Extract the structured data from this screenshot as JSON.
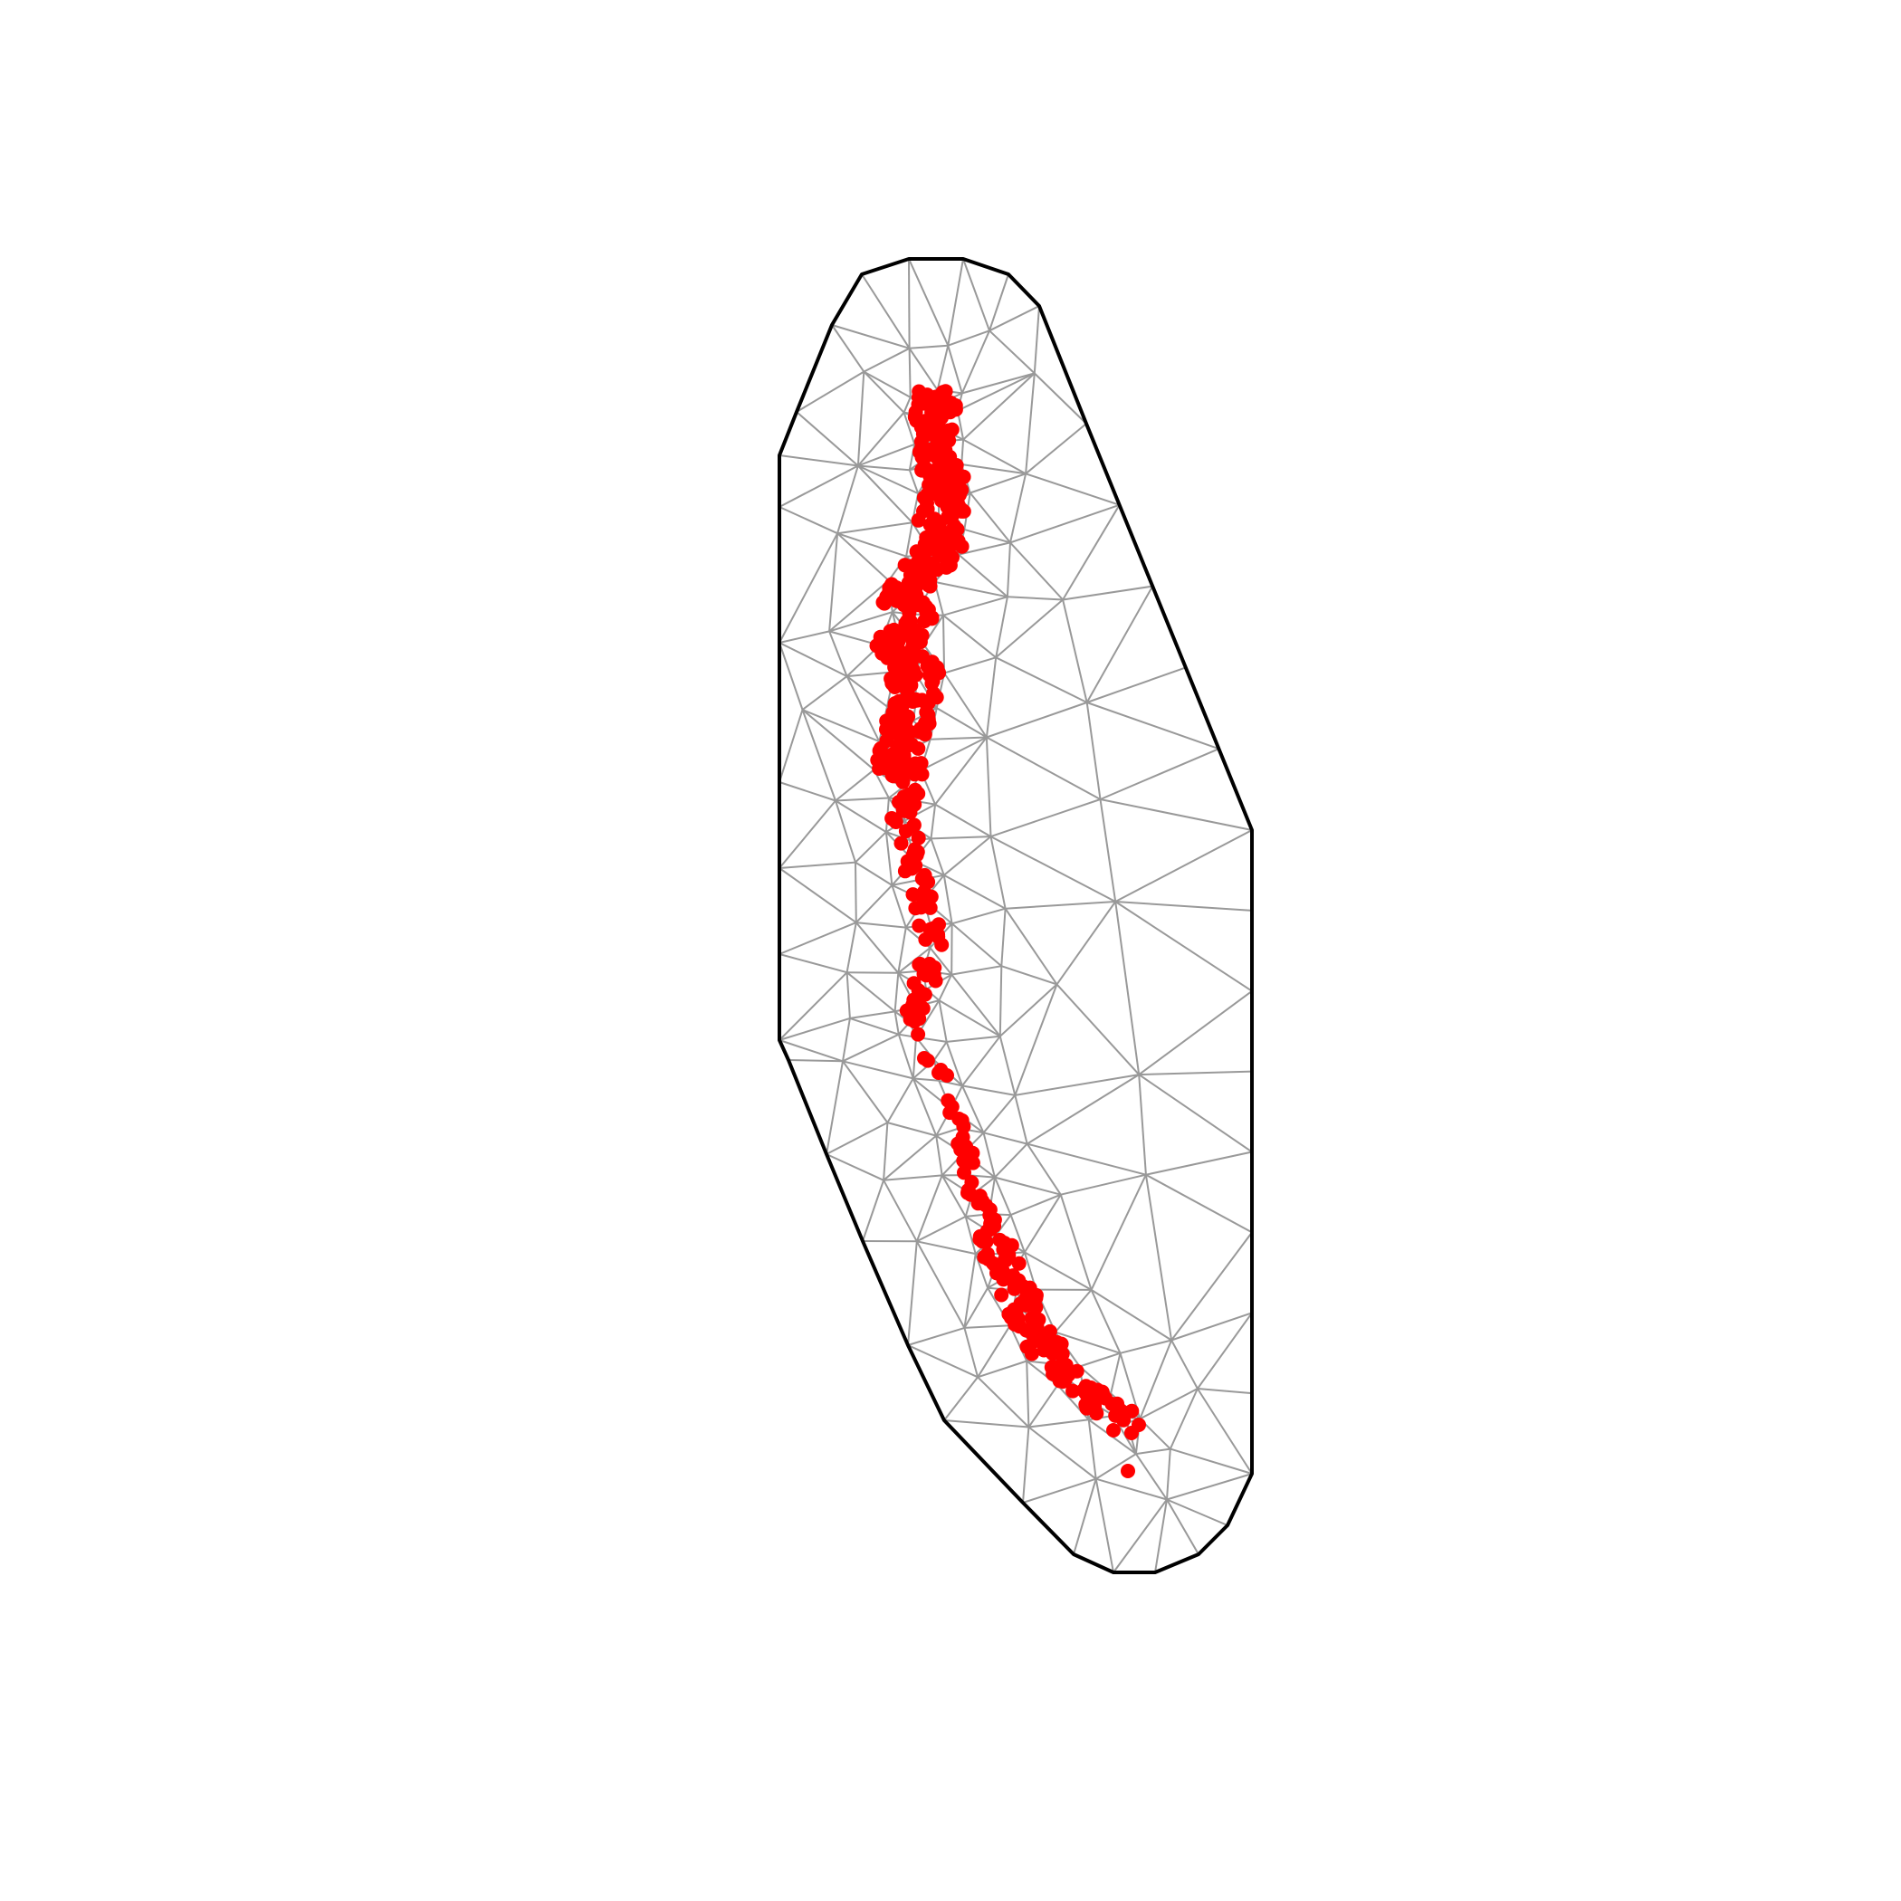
{
  "colors": {
    "background": "#ffffff",
    "boundary": "#000000",
    "mesh_edges": "#999999",
    "points": "#ff0000"
  },
  "figure": {
    "type": "triangulated mesh with observation points",
    "boundary_shape": "convex hull polygon (elongated, tilted)",
    "has_axes": false,
    "has_title": false,
    "has_legend": false
  }
}
